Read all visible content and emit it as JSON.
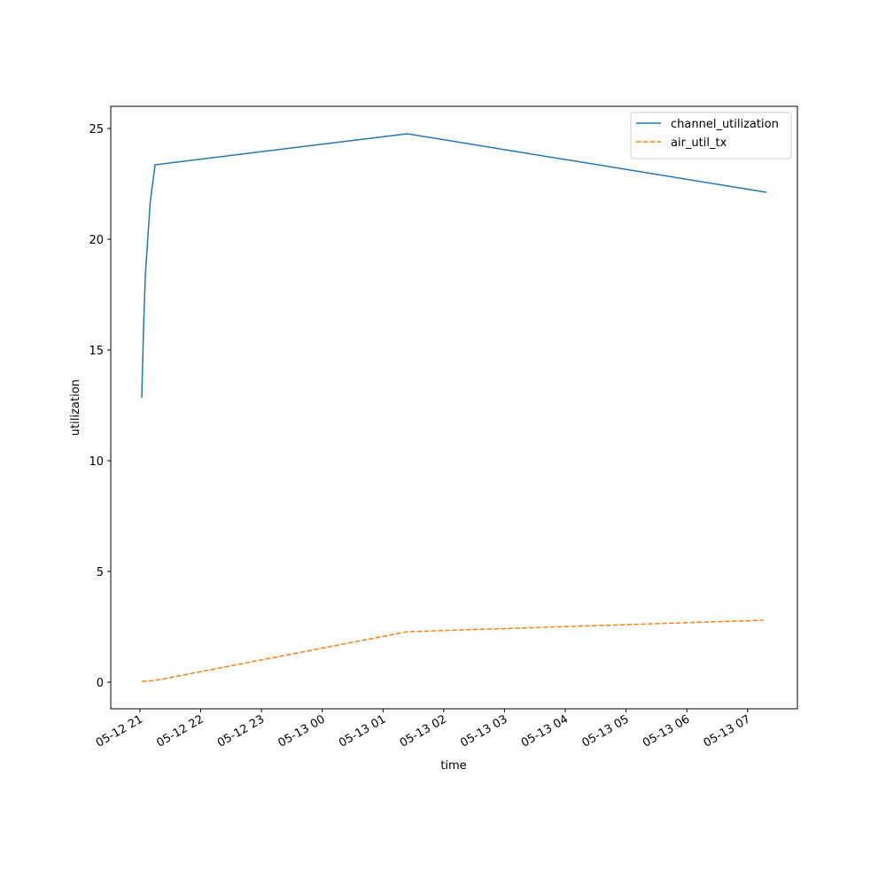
{
  "chart_data": {
    "type": "line",
    "x_label": "time",
    "y_label": "utilization",
    "series": [
      {
        "name": "channel_utilization",
        "color": "#1f77b4",
        "dash": "solid",
        "x": [
          21.03,
          21.06,
          21.09,
          21.17,
          21.25,
          25.4,
          31.31
        ],
        "values": [
          12.84,
          16.0,
          18.4,
          21.7,
          23.36,
          24.76,
          22.12
        ]
      },
      {
        "name": "air_util_tx",
        "color": "#ff7f0e",
        "dash": "dashed",
        "x": [
          21.03,
          21.25,
          25.4,
          31.26
        ],
        "values": [
          0.04,
          0.08,
          2.28,
          2.8
        ]
      }
    ],
    "xlim": [
      20.52,
      31.82
    ],
    "xticks": [
      {
        "value": 21,
        "label": "05-12 21"
      },
      {
        "value": 22,
        "label": "05-12 22"
      },
      {
        "value": 23,
        "label": "05-12 23"
      },
      {
        "value": 24,
        "label": "05-13 00"
      },
      {
        "value": 25,
        "label": "05-13 01"
      },
      {
        "value": 26,
        "label": "05-13 02"
      },
      {
        "value": 27,
        "label": "05-13 03"
      },
      {
        "value": 28,
        "label": "05-13 04"
      },
      {
        "value": 29,
        "label": "05-13 05"
      },
      {
        "value": 30,
        "label": "05-13 06"
      },
      {
        "value": 31,
        "label": "05-13 07"
      }
    ],
    "ylim": [
      -1.2,
      26
    ],
    "yticks": [
      0,
      5,
      10,
      15,
      20,
      25
    ],
    "legend": "upper right"
  }
}
